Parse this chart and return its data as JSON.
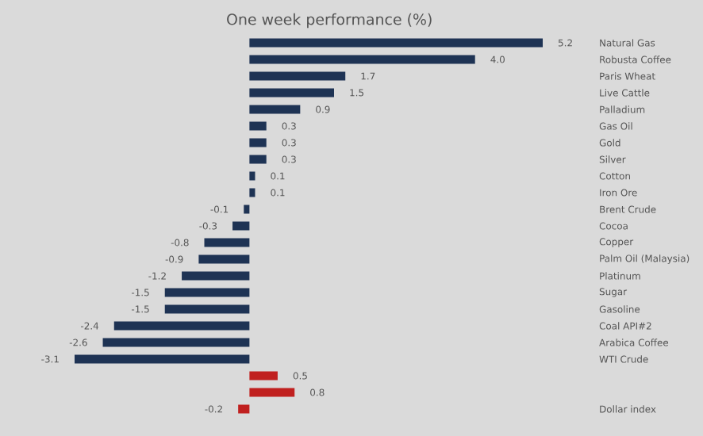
{
  "chart_data": {
    "type": "bar",
    "orientation": "horizontal",
    "title": "One week performance (%)",
    "categories": [
      "Natural Gas",
      "Robusta Coffee",
      "Paris Wheat",
      "Live Cattle",
      "Palladium",
      "Gas Oil",
      "Gold",
      "Silver",
      "Cotton",
      "Iron Ore",
      "Brent Crude",
      "Cocoa",
      "Copper",
      "Palm Oil (Malaysia)",
      "Platinum",
      "Sugar",
      "Gasoline",
      "Coal API#2",
      "Arabica Coffee",
      "WTI Crude",
      null,
      null,
      "Dollar index"
    ],
    "values": [
      5.2,
      4.0,
      1.7,
      1.5,
      0.9,
      0.3,
      0.3,
      0.3,
      0.1,
      0.1,
      -0.1,
      -0.3,
      -0.8,
      -0.9,
      -1.2,
      -1.5,
      -1.5,
      -2.4,
      -2.6,
      -3.1,
      0.5,
      0.8,
      -0.2
    ],
    "value_labels": [
      "5.2",
      "4.0",
      "1.7",
      "1.5",
      "0.9",
      "0.3",
      "0.3",
      "0.3",
      "0.1",
      "0.1",
      "-0.1",
      "-0.3",
      "-0.8",
      "-0.9",
      "-1.2",
      "-1.5",
      "-1.5",
      "-2.4",
      "-2.6",
      "-3.1",
      "0.5",
      "0.8",
      "-0.2"
    ],
    "colors": [
      "#1e3354",
      "#1e3354",
      "#1e3354",
      "#1e3354",
      "#1e3354",
      "#1e3354",
      "#1e3354",
      "#1e3354",
      "#1e3354",
      "#1e3354",
      "#1e3354",
      "#1e3354",
      "#1e3354",
      "#1e3354",
      "#1e3354",
      "#1e3354",
      "#1e3354",
      "#1e3354",
      "#1e3354",
      "#1e3354",
      "#c0201f",
      "#c0201f",
      "#c0201f"
    ]
  }
}
